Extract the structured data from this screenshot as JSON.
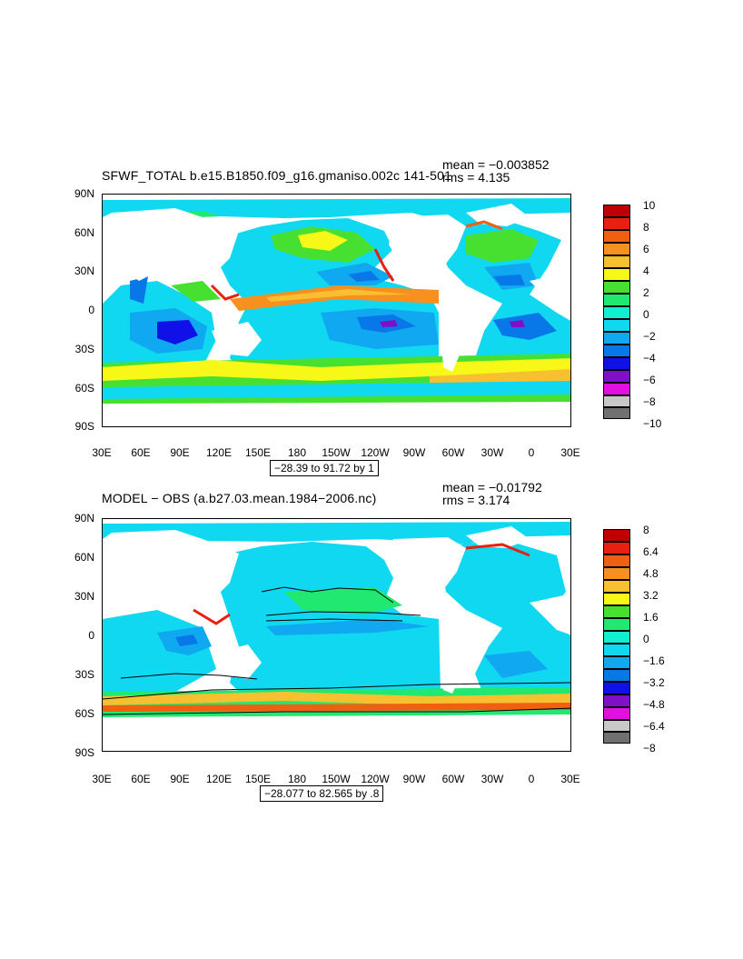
{
  "panels": [
    {
      "id": "top",
      "title": "SFWF_TOTAL b.e15.B1850.f09_g16.gmaniso.002c 141-501",
      "mean_text": "mean = −0.003852",
      "rms_text": "rms = 4.135",
      "range_text": "−28.39 to 91.72 by 1",
      "legend_labels": [
        "10",
        "8",
        "6",
        "4",
        "2",
        "0",
        "−2",
        "−4",
        "−6",
        "−8",
        "−10"
      ]
    },
    {
      "id": "bottom",
      "title": "MODEL − OBS (a.b27.03.mean.1984−2006.nc)",
      "mean_text": "mean = −0.01792",
      "rms_text": "rms = 3.174",
      "range_text": "−28.077 to 82.565 by .8",
      "legend_labels": [
        "8",
        "6.4",
        "4.8",
        "3.2",
        "1.6",
        "0",
        "−1.6",
        "−3.2",
        "−4.8",
        "−6.4",
        "−8"
      ]
    }
  ],
  "axes": {
    "lat_labels": [
      "90N",
      "60N",
      "30N",
      "0",
      "30S",
      "60S",
      "90S"
    ],
    "lon_labels": [
      "30E",
      "60E",
      "90E",
      "120E",
      "150E",
      "180",
      "150W",
      "120W",
      "90W",
      "60W",
      "30W",
      "0",
      "30E"
    ]
  },
  "colors": {
    "legend_scale": [
      "#c00000",
      "#e82010",
      "#f06010",
      "#f89020",
      "#f8c030",
      "#f8f818",
      "#48e030",
      "#20e870",
      "#10f0d0",
      "#10d8f0",
      "#10a8f0",
      "#0878e8",
      "#1010e8",
      "#8010c8",
      "#e010e0",
      "#c8c8c8",
      "#707070"
    ]
  }
}
